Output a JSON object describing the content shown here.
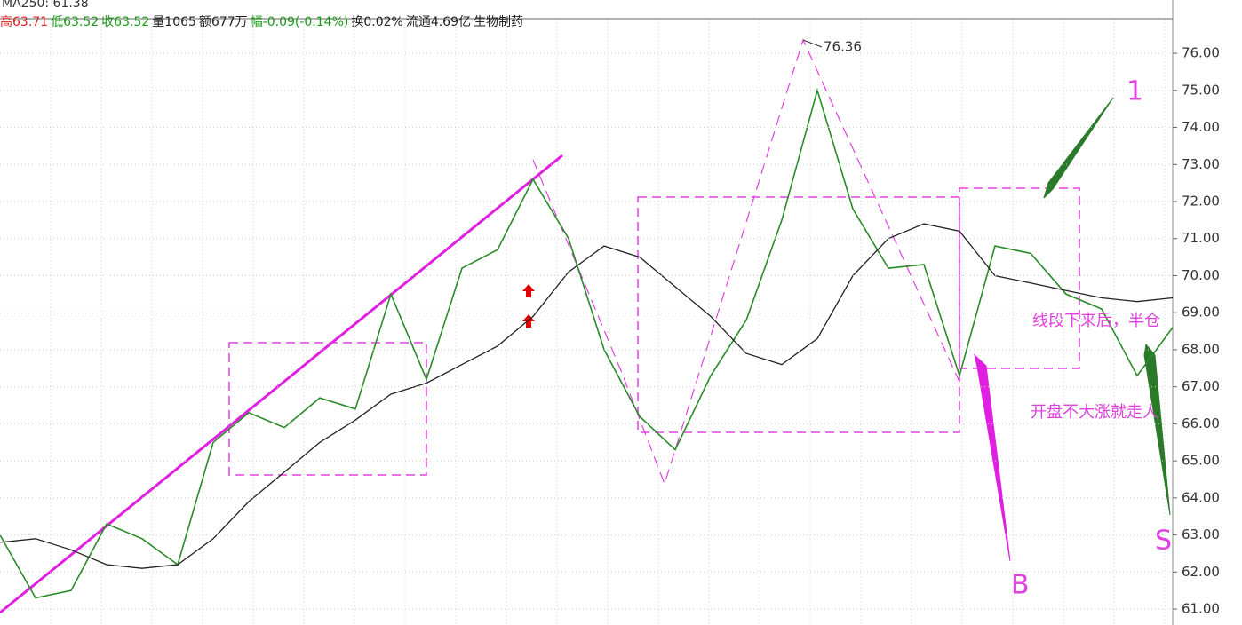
{
  "chart_data": {
    "type": "line",
    "header": "MA250: 61.38",
    "info": [
      {
        "text": "高63.71",
        "color": "#e02020"
      },
      {
        "text": "低63.52",
        "color": "#1a9a1a"
      },
      {
        "text": "收63.52",
        "color": "#1a9a1a"
      },
      {
        "text": "量1065",
        "color": "#222222"
      },
      {
        "text": "额677万",
        "color": "#222222"
      },
      {
        "text": "幅-0.09(-0.14%)",
        "color": "#1a9a1a"
      },
      {
        "text": "换0.02%",
        "color": "#222222"
      },
      {
        "text": "流通4.69亿",
        "color": "#222222"
      },
      {
        "text": "生物制药",
        "color": "#222222"
      }
    ],
    "ylim": [
      60.57,
      77.44
    ],
    "yticks": [
      {
        "value": 61,
        "label": "61.00"
      },
      {
        "value": 62,
        "label": "62.00"
      },
      {
        "value": 63,
        "label": "63.00"
      },
      {
        "value": 64,
        "label": "64.00"
      },
      {
        "value": 65,
        "label": "65.00"
      },
      {
        "value": 66,
        "label": "66.00"
      },
      {
        "value": 67,
        "label": "67.00"
      },
      {
        "value": 68,
        "label": "68.00"
      },
      {
        "value": 69,
        "label": "69.00"
      },
      {
        "value": 70,
        "label": "70.00"
      },
      {
        "value": 71,
        "label": "71.00"
      },
      {
        "value": 72,
        "label": "72.00"
      },
      {
        "value": 73,
        "label": "73.00"
      },
      {
        "value": 74,
        "label": "74.00"
      },
      {
        "value": 75,
        "label": "75.00"
      },
      {
        "value": 76,
        "label": "76.00"
      }
    ],
    "grid": true,
    "series": [
      {
        "color": "#2a8a2a",
        "values": [
          63.0,
          61.3,
          61.5,
          63.3,
          62.9,
          62.2,
          65.5,
          66.3,
          65.9,
          66.7,
          66.4,
          69.5,
          67.2,
          70.2,
          70.7,
          72.6,
          71.0,
          68.0,
          66.2,
          65.3,
          67.3,
          68.8,
          71.5,
          75.0,
          71.8,
          70.2,
          70.3,
          67.3,
          70.8,
          70.6,
          69.5,
          69.1,
          67.3,
          68.6
        ]
      },
      {
        "color": "#222222",
        "values": [
          62.8,
          62.9,
          62.6,
          62.2,
          62.1,
          62.2,
          62.9,
          63.9,
          64.7,
          65.5,
          66.1,
          66.8,
          67.1,
          67.6,
          68.1,
          68.9,
          70.1,
          70.8,
          70.5,
          69.7,
          68.9,
          67.9,
          67.6,
          68.3,
          70.0,
          71.0,
          71.4,
          71.2,
          70.0,
          69.8,
          69.6,
          69.4,
          69.3,
          69.4
        ]
      }
    ],
    "annotations": [
      {
        "text": "76.36",
        "color": "#333333"
      },
      {
        "text": "1",
        "color": "#e040e0"
      },
      {
        "text": "B",
        "color": "#e040e0"
      },
      {
        "text": "S",
        "color": "#e040e0"
      },
      {
        "text": "线段下来后，半仓",
        "color": "#e040e0"
      },
      {
        "text": "开盘不大涨就走人",
        "color": "#e040e0"
      }
    ]
  }
}
